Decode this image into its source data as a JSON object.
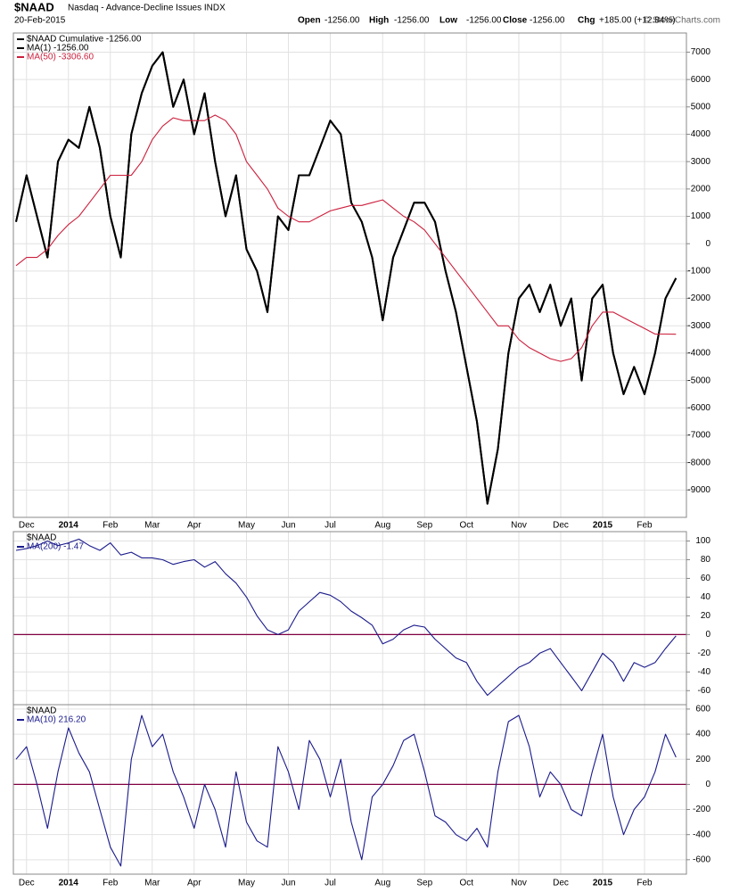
{
  "chart_data": [
    {
      "type": "line",
      "title": "$NAAD",
      "subtitle": "Nasdaq - Advance-Decline Issues INDX",
      "date": "20-Feb-2015",
      "quote": [
        "Open",
        "-1256.00",
        "High",
        "-1256.00",
        "Low",
        "-1256.00",
        "Close",
        "-1256.00",
        "Chg",
        "+185.00 (+12.84%)"
      ],
      "credit": "© StockCharts.com",
      "categories": [
        null,
        "Dec",
        null,
        null,
        null,
        "2014",
        null,
        null,
        null,
        "Feb",
        null,
        null,
        null,
        "Mar",
        null,
        null,
        null,
        "Apr",
        null,
        null,
        null,
        null,
        "May",
        null,
        null,
        null,
        "Jun",
        null,
        null,
        null,
        "Jul",
        null,
        null,
        null,
        null,
        "Aug",
        null,
        null,
        null,
        "Sep",
        null,
        null,
        null,
        "Oct",
        null,
        null,
        null,
        null,
        "Nov",
        null,
        null,
        null,
        "Dec",
        null,
        null,
        null,
        "2015",
        null,
        null,
        null,
        "Feb",
        null,
        null,
        null
      ],
      "series": [
        {
          "name": "$NAAD Cumulative -1256.00",
          "color": "#000000",
          "values": [
            800,
            2500,
            1000,
            -500,
            3000,
            3800,
            3500,
            5000,
            3500,
            1000,
            -500,
            4000,
            5500,
            6500,
            7000,
            5000,
            6000,
            4000,
            5500,
            3000,
            1000,
            2500,
            -200,
            -1000,
            -2500,
            1000,
            500,
            2500,
            2500,
            3500,
            4500,
            4000,
            1500,
            800,
            -500,
            -2800,
            -500,
            500,
            1500,
            1500,
            800,
            -1000,
            -2500,
            -4500,
            -6500,
            -9500,
            -7500,
            -4000,
            -2000,
            -1500,
            -2500,
            -1500,
            -3000,
            -2000,
            -5000,
            -2000,
            -1500,
            -4000,
            -5500,
            -4500,
            -5500,
            -4000,
            -2000,
            -1256
          ]
        },
        {
          "name": "MA(1) -1256.00",
          "color": "#000000",
          "values": [
            800,
            2500,
            1000,
            -500,
            3000,
            3800,
            3500,
            5000,
            3500,
            1000,
            -500,
            4000,
            5500,
            6500,
            7000,
            5000,
            6000,
            4000,
            5500,
            3000,
            1000,
            2500,
            -200,
            -1000,
            -2500,
            1000,
            500,
            2500,
            2500,
            3500,
            4500,
            4000,
            1500,
            800,
            -500,
            -2800,
            -500,
            500,
            1500,
            1500,
            800,
            -1000,
            -2500,
            -4500,
            -6500,
            -9500,
            -7500,
            -4000,
            -2000,
            -1500,
            -2500,
            -1500,
            -3000,
            -2000,
            -5000,
            -2000,
            -1500,
            -4000,
            -5500,
            -4500,
            -5500,
            -4000,
            -2000,
            -1256
          ]
        },
        {
          "name": "MA(50) -3306.60",
          "color": "#cc1f3c",
          "values": [
            -800,
            -500,
            -500,
            -200,
            300,
            700,
            1000,
            1500,
            2000,
            2500,
            2500,
            2500,
            3000,
            3800,
            4300,
            4600,
            4500,
            4500,
            4500,
            4700,
            4500,
            4000,
            3000,
            2500,
            2000,
            1300,
            1000,
            800,
            800,
            1000,
            1200,
            1300,
            1400,
            1400,
            1500,
            1600,
            1300,
            1000,
            800,
            500,
            0,
            -500,
            -1000,
            -1500,
            -2000,
            -2500,
            -3000,
            -3000,
            -3500,
            -3800,
            -4000,
            -4200,
            -4300,
            -4200,
            -3800,
            -3000,
            -2500,
            -2500,
            -2700,
            -2900,
            -3100,
            -3300,
            -3300,
            -3306.6
          ]
        }
      ],
      "ylim": [
        -10000,
        7700
      ],
      "yticks": [
        7000,
        6000,
        5000,
        4000,
        3000,
        2000,
        1000,
        0,
        -1000,
        -2000,
        -3000,
        -4000,
        -5000,
        -6000,
        -7000,
        -8000,
        -9000
      ],
      "grid": true
    },
    {
      "type": "line",
      "title": "$NAAD",
      "series": [
        {
          "name": "MA(200) -1.47",
          "color": "#1a1a8c",
          "values": [
            90,
            92,
            95,
            100,
            95,
            98,
            102,
            95,
            90,
            98,
            85,
            88,
            82,
            82,
            80,
            75,
            78,
            80,
            72,
            78,
            65,
            55,
            40,
            20,
            5,
            0,
            5,
            25,
            35,
            45,
            42,
            35,
            25,
            18,
            10,
            -10,
            -5,
            5,
            10,
            8,
            -5,
            -15,
            -25,
            -30,
            -50,
            -65,
            -55,
            -45,
            -35,
            -30,
            -20,
            -15,
            -30,
            -45,
            -60,
            -40,
            -20,
            -30,
            -50,
            -30,
            -35,
            -30,
            -15,
            -1.47
          ]
        }
      ],
      "reference_line": {
        "value": 0,
        "color": "#800040"
      },
      "ylim": [
        -75,
        110
      ],
      "yticks": [
        100,
        80,
        60,
        40,
        20,
        0,
        -20,
        -40,
        -60
      ],
      "grid": true
    },
    {
      "type": "line",
      "title": "$NAAD",
      "categories": [
        null,
        "Dec",
        null,
        null,
        null,
        "2014",
        null,
        null,
        null,
        "Feb",
        null,
        null,
        null,
        "Mar",
        null,
        null,
        null,
        "Apr",
        null,
        null,
        null,
        null,
        "May",
        null,
        null,
        null,
        "Jun",
        null,
        null,
        null,
        "Jul",
        null,
        null,
        null,
        null,
        "Aug",
        null,
        null,
        null,
        "Sep",
        null,
        null,
        null,
        "Oct",
        null,
        null,
        null,
        null,
        "Nov",
        null,
        null,
        null,
        "Dec",
        null,
        null,
        null,
        "2015",
        null,
        null,
        null,
        "Feb",
        null,
        null,
        null
      ],
      "series": [
        {
          "name": "MA(10) 216.20",
          "color": "#1a1a8c",
          "values": [
            200,
            300,
            0,
            -350,
            100,
            450,
            250,
            100,
            -200,
            -500,
            -650,
            200,
            550,
            300,
            400,
            100,
            -100,
            -350,
            0,
            -200,
            -500,
            100,
            -300,
            -450,
            -500,
            300,
            100,
            -200,
            350,
            200,
            -100,
            200,
            -300,
            -600,
            -100,
            0,
            150,
            350,
            400,
            100,
            -250,
            -300,
            -400,
            -450,
            -350,
            -500,
            100,
            500,
            550,
            300,
            -100,
            100,
            0,
            -200,
            -250,
            100,
            400,
            -100,
            -400,
            -200,
            -100,
            100,
            400,
            216.2
          ]
        }
      ],
      "reference_line": {
        "value": 0,
        "color": "#800040"
      },
      "ylim": [
        -715,
        635
      ],
      "yticks": [
        600,
        400,
        200,
        0,
        -200,
        -400,
        -600
      ],
      "grid": true
    }
  ]
}
